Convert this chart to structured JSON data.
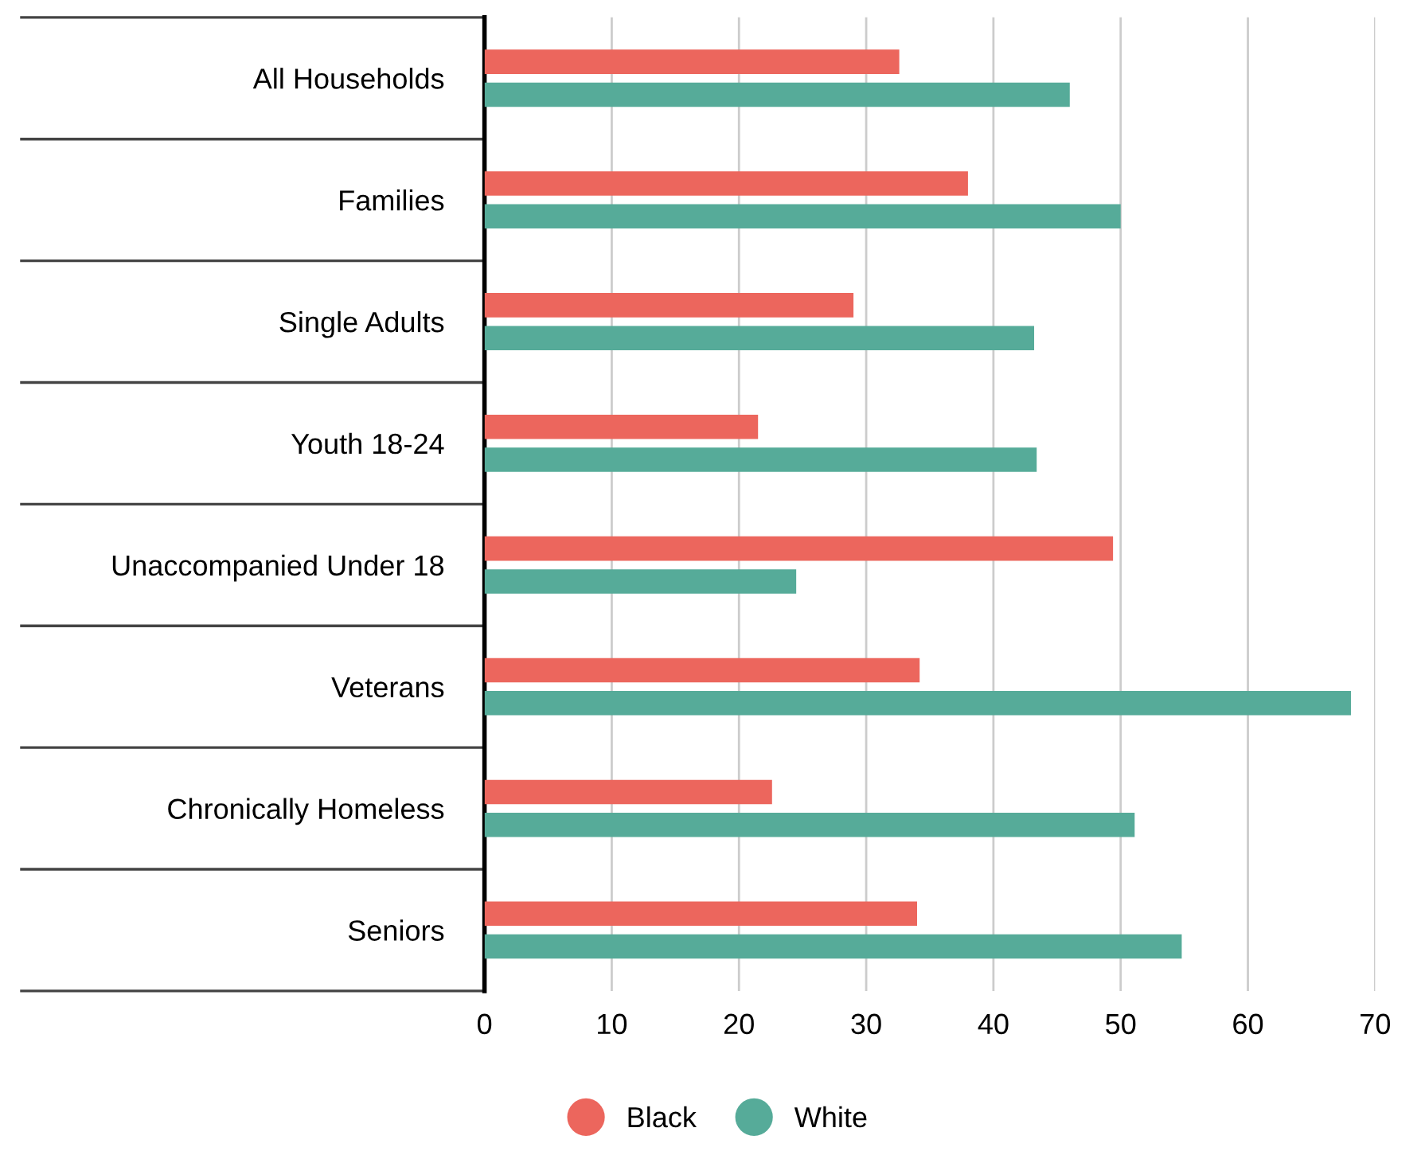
{
  "chart_data": {
    "type": "bar",
    "orientation": "horizontal",
    "categories": [
      "All Households",
      "Families",
      "Single Adults",
      "Youth 18-24",
      "Unaccompanied Under 18",
      "Veterans",
      "Chronically Homeless",
      "Seniors"
    ],
    "series": [
      {
        "name": "Black",
        "color": "#ec665d",
        "values": [
          32.6,
          38.0,
          29.0,
          21.5,
          49.4,
          34.2,
          22.6,
          34.0
        ]
      },
      {
        "name": "White",
        "color": "#56ab99",
        "values": [
          46.0,
          50.0,
          43.2,
          43.4,
          24.5,
          68.1,
          51.1,
          54.8
        ]
      }
    ],
    "xlim": [
      0,
      70
    ],
    "xticks": [
      0,
      10,
      20,
      30,
      40,
      50,
      60,
      70
    ],
    "grid": "x",
    "legend": "bottom"
  }
}
